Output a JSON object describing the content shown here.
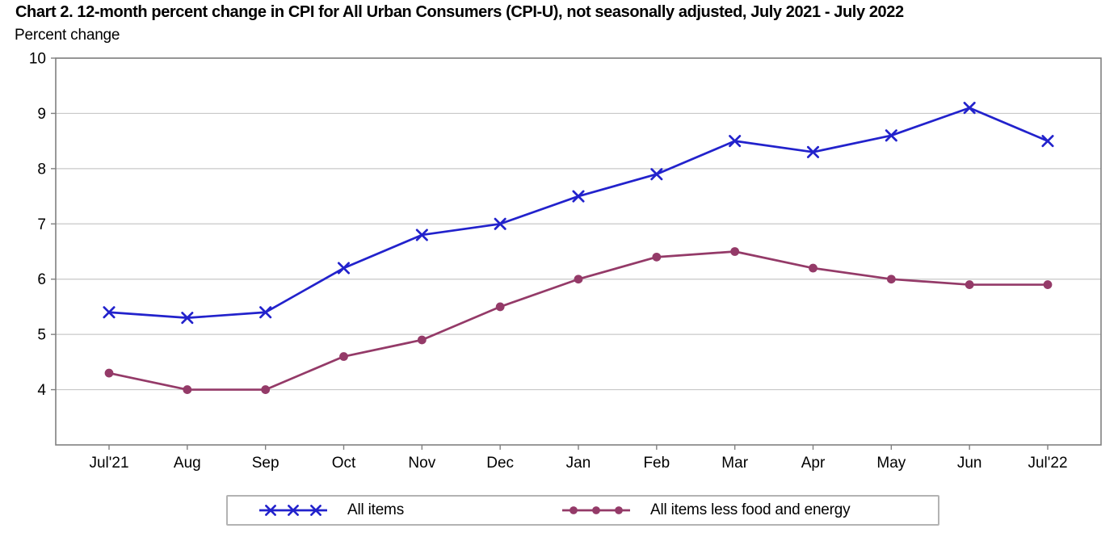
{
  "title": "Chart 2. 12-month percent change in CPI for All Urban Consumers (CPI-U), not seasonally adjusted, July 2021 - July 2022",
  "y_axis_title": "Percent change",
  "chart_data": {
    "type": "line",
    "categories": [
      "Jul'21",
      "Aug",
      "Sep",
      "Oct",
      "Nov",
      "Dec",
      "Jan",
      "Feb",
      "Mar",
      "Apr",
      "May",
      "Jun",
      "Jul'22"
    ],
    "series": [
      {
        "name": "All items",
        "marker": "x",
        "color": "#2222cc",
        "values": [
          5.4,
          5.3,
          5.4,
          6.2,
          6.8,
          7.0,
          7.5,
          7.9,
          8.5,
          8.3,
          8.6,
          9.1,
          8.5
        ]
      },
      {
        "name": "All items less food and energy",
        "marker": "circle",
        "color": "#943a68",
        "values": [
          4.3,
          4.0,
          4.0,
          4.6,
          4.9,
          5.5,
          6.0,
          6.4,
          6.5,
          6.2,
          6.0,
          5.9,
          5.9
        ]
      }
    ],
    "ylim": [
      3,
      10
    ],
    "y_ticks": [
      4,
      5,
      6,
      7,
      8,
      9,
      10
    ],
    "grid": "horizontal",
    "legend_position": "bottom"
  },
  "colors": {
    "frame": "#808080",
    "gridline": "#c8c8c8",
    "legend_border": "#b3b3b3",
    "text": "#000000"
  }
}
